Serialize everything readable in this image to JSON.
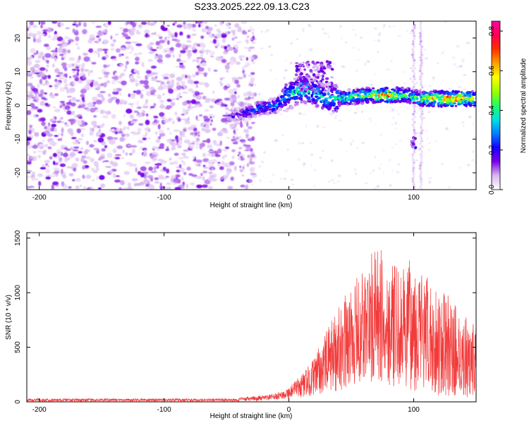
{
  "title": "S233.2025.222.09.13.C23",
  "colors": {
    "snr_line": "#f23b3b",
    "axis": "#000000",
    "background": "#ffffff"
  },
  "chart_data": [
    {
      "type": "heatmap",
      "name": "spectrogram",
      "xlabel": "Height of straight line (km)",
      "ylabel": "Frequency (Hz)",
      "xlim": [
        -210,
        150
      ],
      "ylim": [
        -25,
        25
      ],
      "xticks": [
        -200,
        -100,
        0,
        100
      ],
      "yticks": [
        -20,
        -10,
        0,
        10,
        20
      ],
      "colorbar": {
        "label": "Normalized spectral amplitude",
        "range": [
          0.0,
          0.85
        ],
        "ticks": [
          "0.0",
          "0.2",
          "0.4",
          "0.6",
          "0.8"
        ],
        "tick_values": [
          0.0,
          0.2,
          0.4,
          0.6,
          0.8
        ],
        "stops": [
          "#ffffff",
          "#d8b8f0",
          "#7a00e6",
          "#1a00ff",
          "#0080ff",
          "#00e0e0",
          "#20ff60",
          "#a0ff00",
          "#ffff00",
          "#ffa000",
          "#ff3000",
          "#ff0050",
          "#ff00a0"
        ]
      },
      "signal_track": {
        "x": [
          -40,
          -25,
          -10,
          0,
          10,
          20,
          30,
          40,
          60,
          80,
          95,
          105,
          120,
          135,
          150
        ],
        "frequency_hz": [
          -3,
          -1,
          0,
          3,
          5,
          4,
          2,
          2,
          3,
          3,
          3,
          2,
          2,
          2,
          2
        ],
        "peak_amplitude": [
          0.2,
          0.3,
          0.35,
          0.4,
          0.45,
          0.4,
          0.4,
          0.45,
          0.55,
          0.75,
          0.45,
          0.55,
          0.8,
          0.8,
          0.7
        ]
      },
      "noise_region_x": [
        -210,
        -35
      ]
    },
    {
      "type": "line",
      "name": "snr",
      "xlabel": "Height of straight line (km)",
      "ylabel": "SNR (10 * v/v)",
      "xlim": [
        -210,
        150
      ],
      "ylim": [
        0,
        1550
      ],
      "xticks": [
        -200,
        -100,
        0,
        100
      ],
      "yticks": [
        0,
        500,
        1000,
        1500
      ],
      "series": [
        {
          "name": "SNR",
          "color": "#f23b3b",
          "x": [
            -210,
            -180,
            -150,
            -120,
            -90,
            -60,
            -40,
            -20,
            -10,
            0,
            10,
            20,
            30,
            40,
            50,
            60,
            70,
            80,
            90,
            100,
            110,
            120,
            130,
            140,
            150
          ],
          "envelope": [
            30,
            30,
            30,
            30,
            30,
            30,
            40,
            60,
            80,
            140,
            250,
            400,
            650,
            900,
            1050,
            1250,
            1450,
            1300,
            1200,
            1350,
            1150,
            1050,
            950,
            800,
            720
          ],
          "baseline": [
            5,
            5,
            5,
            5,
            5,
            5,
            5,
            10,
            20,
            30,
            40,
            60,
            80,
            100,
            150,
            150,
            150,
            150,
            120,
            100,
            80,
            60,
            50,
            40,
            40
          ]
        }
      ]
    }
  ]
}
